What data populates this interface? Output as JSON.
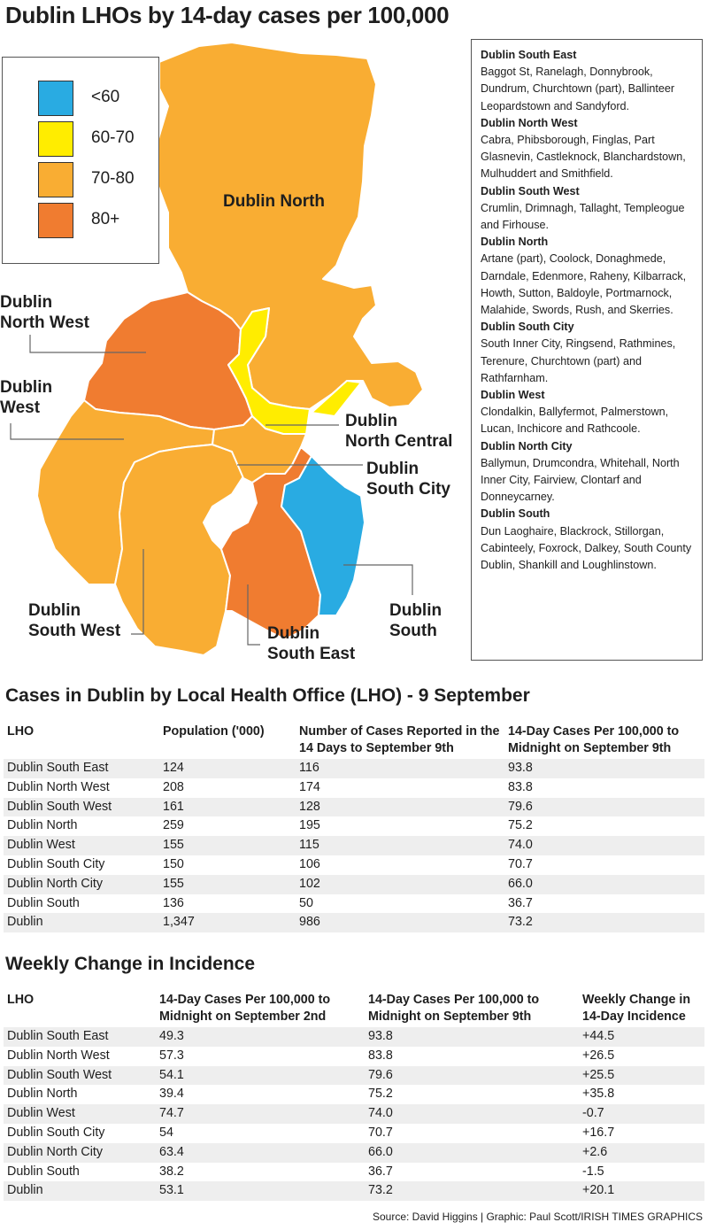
{
  "title": "Dublin LHOs by 14-day cases per 100,000",
  "colors": {
    "lt60": "#29abe2",
    "60_70": "#ffed00",
    "70_80": "#f9ad33",
    "80plus": "#f07c30",
    "border": "#ffffff",
    "leader": "#666666"
  },
  "legend": [
    {
      "label": "<60",
      "color": "#29abe2"
    },
    {
      "label": "60-70",
      "color": "#ffed00"
    },
    {
      "label": "70-80",
      "color": "#f9ad33"
    },
    {
      "label": "80+",
      "color": "#f07c30"
    }
  ],
  "map_labels": {
    "dublin_north": "Dublin North",
    "dublin_north_west": "Dublin\nNorth West",
    "dublin_west": "Dublin\nWest",
    "dublin_north_central": "Dublin\nNorth Central",
    "dublin_south_city": "Dublin\nSouth City",
    "dublin_south_west": "Dublin\nSouth West",
    "dublin_south_east": "Dublin\nSouth East",
    "dublin_south": "Dublin\nSouth"
  },
  "areas": [
    {
      "name": "Dublin South East",
      "text": "Baggot St, Ranelagh, Donnybrook, Dundrum, Churchtown (part), Ballinteer Leopardstown and Sandyford."
    },
    {
      "name": "Dublin North West",
      "text": "Cabra, Phibsborough, Finglas, Part Glasnevin, Castleknock, Blanchardstown, Mulhuddert and Smithfield."
    },
    {
      "name": "Dublin South West",
      "text": "Crumlin, Drimnagh, Tallaght, Templeogue and Firhouse."
    },
    {
      "name": "Dublin North",
      "text": "Artane (part), Coolock, Donaghmede, Darndale, Edenmore, Raheny, Kilbarrack, Howth, Sutton, Baldoyle, Portmarnock, Malahide, Swords, Rush, and Skerries."
    },
    {
      "name": "Dublin South City",
      "text": "South Inner City, Ringsend, Rathmines, Terenure, Churchtown (part) and Rathfarnham."
    },
    {
      "name": "Dublin West",
      "text": "Clondalkin, Ballyfermot, Palmerstown, Lucan, Inchicore and Rathcoole."
    },
    {
      "name": "Dublin North City",
      "text": "Ballymun, Drumcondra, Whitehall, North Inner City, Fairview, Clontarf and Donneycarney."
    },
    {
      "name": "Dublin South",
      "text": "Dun Laoghaire, Blackrock, Stillorgan, Cabinteely, Foxrock, Dalkey, South County Dublin, Shankill and Loughlinstown."
    }
  ],
  "table1": {
    "title": "Cases in Dublin by Local Health Office (LHO) - 9 September",
    "headers": [
      "LHO",
      "Population ('000)",
      "Number of Cases Reported in the 14 Days to September 9th",
      "14-Day Cases Per 100,000 to Midnight on September 9th"
    ],
    "rows": [
      [
        "Dublin South East",
        "124",
        "116",
        "93.8"
      ],
      [
        "Dublin North West",
        "208",
        "174",
        "83.8"
      ],
      [
        "Dublin South West",
        "161",
        "128",
        "79.6"
      ],
      [
        "Dublin North",
        "259",
        "195",
        "75.2"
      ],
      [
        "Dublin West",
        "155",
        "115",
        "74.0"
      ],
      [
        "Dublin South City",
        "150",
        "106",
        "70.7"
      ],
      [
        "Dublin North City",
        "155",
        "102",
        "66.0"
      ],
      [
        "Dublin South",
        "136",
        "50",
        "36.7"
      ],
      [
        "Dublin",
        "1,347",
        "986",
        "73.2"
      ]
    ]
  },
  "table2": {
    "title": "Weekly Change in Incidence",
    "headers": [
      "LHO",
      "14-Day Cases Per 100,000 to Midnight on September 2nd",
      "14-Day Cases Per 100,000 to Midnight on September 9th",
      "Weekly Change in 14-Day Incidence"
    ],
    "rows": [
      [
        "Dublin South East",
        "49.3",
        "93.8",
        "+44.5"
      ],
      [
        "Dublin North West",
        "57.3",
        "83.8",
        "+26.5"
      ],
      [
        "Dublin South West",
        "54.1",
        "79.6",
        "+25.5"
      ],
      [
        "Dublin North",
        "39.4",
        "75.2",
        "+35.8"
      ],
      [
        "Dublin West",
        "74.7",
        "74.0",
        "-0.7"
      ],
      [
        "Dublin South City",
        "54",
        "70.7",
        "+16.7"
      ],
      [
        "Dublin North City",
        "63.4",
        "66.0",
        "+2.6"
      ],
      [
        "Dublin South",
        "38.2",
        "36.7",
        "-1.5"
      ],
      [
        "Dublin",
        "53.1",
        "73.2",
        "+20.1"
      ]
    ]
  },
  "source": "Source: David Higgins  |  Graphic: Paul Scott/IRISH TIMES GRAPHICS"
}
